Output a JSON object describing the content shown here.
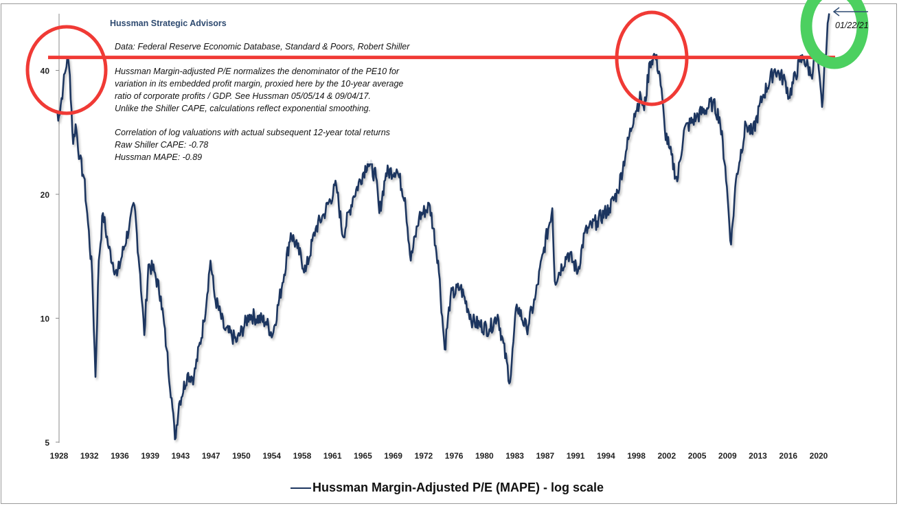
{
  "header": {
    "company": "Hussman Strategic Advisors"
  },
  "notes": {
    "source": "Data: Federal Reserve Economic Database, Standard & Poors, Robert Shiller",
    "description": [
      "Hussman Margin-adjusted P/E normalizes the denominator of the PE10 for",
      "variation in its embedded profit margin, proxied here by the 10-year average",
      "ratio of corporate profits / GDP. See Hussman 05/05/14  & 09/04/17.",
      "Unlike the Shiller CAPE, calculations reflect exponential smoothing."
    ],
    "correlation": [
      "Correlation of log valuations with actual subsequent 12-year total returns",
      "Raw Shiller CAPE: -0.78",
      "Hussman MAPE: -0.89"
    ]
  },
  "annotation": {
    "date_label": "01/22/21",
    "arrow": "left-arrow-icon"
  },
  "colors": {
    "series": "#1c355e",
    "highlight_line": "#f03a35",
    "circle_red": "#f03a35",
    "circle_green": "#4cd060"
  },
  "chart_data": {
    "type": "line",
    "title": "",
    "xlabel": "",
    "ylabel": "",
    "yscale": "log",
    "ylim": [
      5,
      55
    ],
    "xlim": [
      1927.5,
      2021.5
    ],
    "grid": false,
    "legend_position": "bottom",
    "yticks": [
      5,
      10,
      20,
      40
    ],
    "ytick_labels": [
      "5",
      "10",
      "20",
      "40"
    ],
    "xtick_labels": [
      "1928",
      "1932",
      "1936",
      "1939",
      "1943",
      "1947",
      "1950",
      "1954",
      "1958",
      "1961",
      "1965",
      "1969",
      "1972",
      "1976",
      "1980",
      "1983",
      "1987",
      "1991",
      "1994",
      "1998",
      "2002",
      "2005",
      "2009",
      "2013",
      "2016",
      "2020"
    ],
    "highlight_level": 43,
    "series": [
      {
        "name": "Hussman Margin-Adjusted P/E (MAPE) - log scale",
        "x": [
          1927.6,
          1928.0,
          1928.5,
          1929.0,
          1929.3,
          1929.7,
          1930.0,
          1930.5,
          1931.0,
          1931.5,
          1932.0,
          1932.4,
          1932.8,
          1933.3,
          1934.0,
          1935.0,
          1936.5,
          1937.1,
          1937.8,
          1938.3,
          1938.8,
          1939.5,
          1940.3,
          1941.0,
          1941.6,
          1942.0,
          1942.5,
          1943.5,
          1944.3,
          1945.5,
          1946.3,
          1946.8,
          1948.0,
          1949.5,
          1951.0,
          1953.0,
          1953.8,
          1955.0,
          1956.0,
          1956.8,
          1957.8,
          1959.0,
          1960.0,
          1961.5,
          1962.3,
          1963.5,
          1965.3,
          1966.3,
          1966.7,
          1967.5,
          1968.8,
          1969.8,
          1970.5,
          1971.5,
          1972.8,
          1973.8,
          1974.6,
          1975.3,
          1976.5,
          1978.0,
          1980.0,
          1981.0,
          1982.5,
          1983.3,
          1984.5,
          1985.5,
          1986.5,
          1987.6,
          1987.9,
          1989.5,
          1990.7,
          1991.5,
          1993.0,
          1994.5,
          1995.5,
          1996.5,
          1997.5,
          1998.3,
          1998.7,
          1999.4,
          2000.0,
          2000.6,
          2001.2,
          2001.7,
          2002.7,
          2003.5,
          2005.0,
          2007.0,
          2007.8,
          2008.5,
          2009.2,
          2009.8,
          2011.0,
          2011.8,
          2013.0,
          2014.5,
          2015.8,
          2016.2,
          2017.5,
          2018.0,
          2018.9,
          2019.5,
          2020.2,
          2020.6,
          2021.05
        ],
        "y": [
          32,
          31,
          36.6,
          43,
          39,
          26.5,
          29.6,
          24.4,
          22,
          17,
          12.8,
          7.2,
          13.8,
          18,
          14.8,
          12.7,
          16.8,
          18.8,
          12.8,
          9.1,
          13.5,
          13,
          11.3,
          8.4,
          6.4,
          5.08,
          6.2,
          7.3,
          7.2,
          9.8,
          13.8,
          11.3,
          9.4,
          8.8,
          10.2,
          9.8,
          9.1,
          12.2,
          16.1,
          14.8,
          13,
          16.5,
          17.9,
          21,
          15.8,
          19.6,
          24,
          22,
          18,
          22.5,
          23,
          19.6,
          13.8,
          17.6,
          18.8,
          13.8,
          8.4,
          11.3,
          11.9,
          9.8,
          9.4,
          10.2,
          7,
          10.8,
          9.4,
          11.1,
          14.4,
          18.5,
          12.3,
          14.4,
          13,
          16.1,
          17.2,
          18.5,
          20.3,
          25.4,
          31.4,
          34.5,
          32,
          42,
          43.6,
          39,
          28.6,
          26,
          21.5,
          28.6,
          30.8,
          33.3,
          30.8,
          23.4,
          15.1,
          21.8,
          29.6,
          28,
          34.5,
          40.3,
          37.5,
          34.5,
          42,
          42.8,
          39,
          44.5,
          32.6,
          43.6,
          55
        ]
      }
    ]
  }
}
